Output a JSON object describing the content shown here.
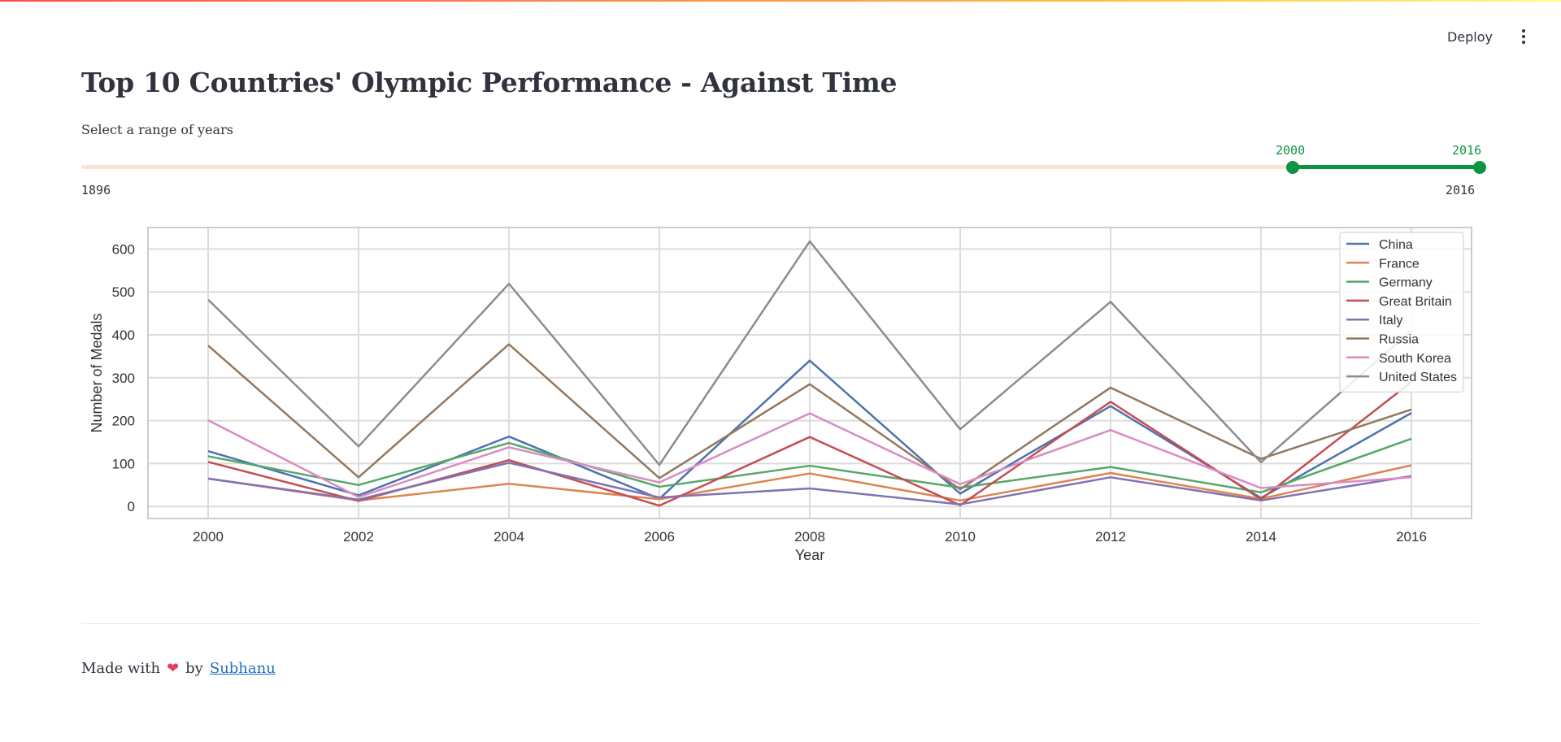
{
  "header": {
    "deploy_label": "Deploy",
    "menu_icon": "more-vertical-icon"
  },
  "page": {
    "title": "Top 10 Countries' Olympic Performance - Against Time"
  },
  "slider": {
    "label": "Select a range of years",
    "min": "1896",
    "max": "2016",
    "selected_min": "2000",
    "selected_max": "2016",
    "accent_color": "#0b9444",
    "track_color": "#fde3d2"
  },
  "chart_data": {
    "type": "line",
    "title": "",
    "xlabel": "Year",
    "ylabel": "Number of Medals",
    "x": [
      2000,
      2002,
      2004,
      2006,
      2008,
      2010,
      2012,
      2014,
      2016
    ],
    "xlim": [
      1999.2,
      2016.8
    ],
    "ylim": [
      -28,
      650
    ],
    "yticks": [
      0,
      100,
      200,
      300,
      400,
      500,
      600
    ],
    "grid": true,
    "legend_position": "top-right",
    "series": [
      {
        "name": "China",
        "color": "#4c72b0",
        "values": [
          129,
          26,
          163,
          18,
          340,
          30,
          234,
          20,
          218
        ]
      },
      {
        "name": "France",
        "color": "#dd8452",
        "values": [
          65,
          14,
          53,
          17,
          77,
          14,
          78,
          18,
          96
        ]
      },
      {
        "name": "Germany",
        "color": "#55a868",
        "values": [
          117,
          50,
          148,
          46,
          95,
          44,
          92,
          33,
          158
        ]
      },
      {
        "name": "Great Britain",
        "color": "#c44e52",
        "values": [
          104,
          13,
          108,
          2,
          162,
          3,
          244,
          17,
          290
        ]
      },
      {
        "name": "Italy",
        "color": "#8172b3",
        "values": [
          65,
          16,
          102,
          21,
          42,
          5,
          68,
          14,
          71
        ]
      },
      {
        "name": "Russia",
        "color": "#937860",
        "values": [
          375,
          68,
          378,
          66,
          285,
          40,
          277,
          111,
          226
        ]
      },
      {
        "name": "South Korea",
        "color": "#da8bc3",
        "values": [
          201,
          22,
          138,
          56,
          217,
          52,
          178,
          43,
          68
        ]
      },
      {
        "name": "United States",
        "color": "#8c8c8c",
        "values": [
          482,
          140,
          519,
          97,
          618,
          180,
          477,
          103,
          410
        ]
      }
    ]
  },
  "footer": {
    "made_with": "Made with",
    "by": "by",
    "author": "Subhanu",
    "heart_icon": "heart-icon"
  }
}
